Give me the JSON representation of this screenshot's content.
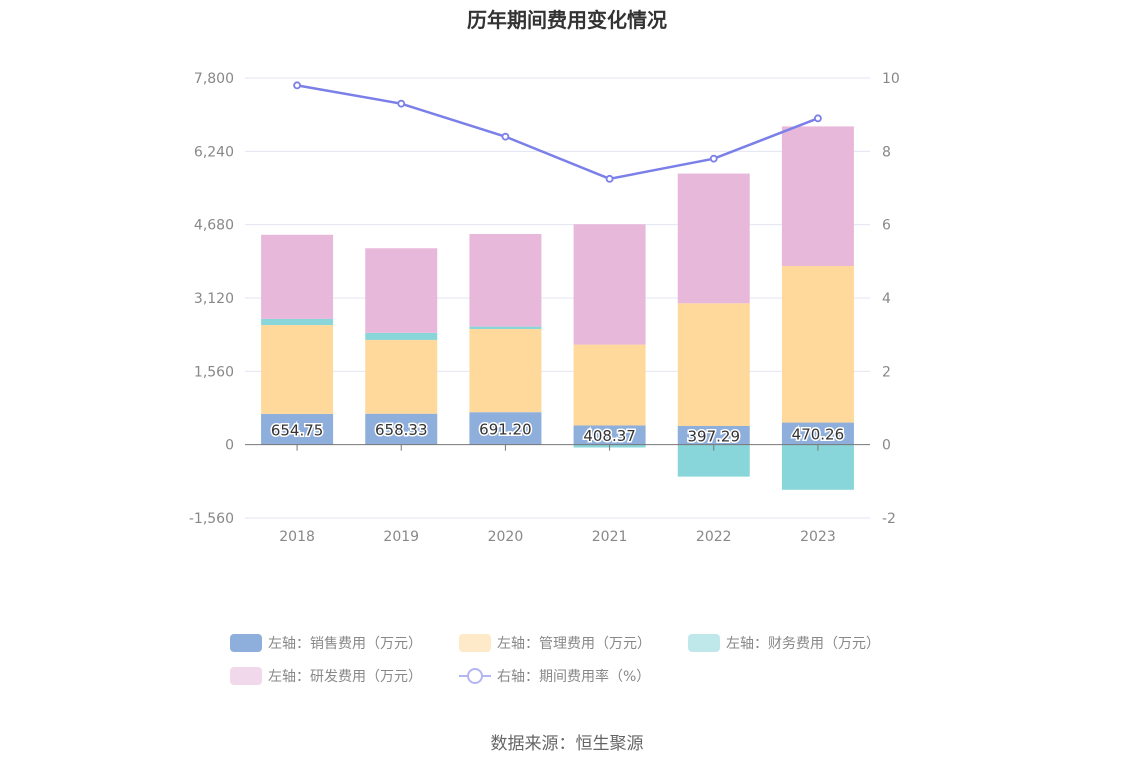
{
  "source_note": "数据来源：恒生聚源",
  "chart_data": {
    "type": "bar",
    "title": "历年期间费用变化情况",
    "categories": [
      "2018",
      "2019",
      "2020",
      "2021",
      "2022",
      "2023"
    ],
    "left_axis": {
      "min": -1560,
      "max": 7800,
      "ticks": [
        -1560,
        0,
        1560,
        3120,
        4680,
        6240,
        7800
      ],
      "tick_labels": [
        "-1,560",
        "0",
        "1,560",
        "3,120",
        "4,680",
        "6,240",
        "7,800"
      ]
    },
    "right_axis": {
      "min": -2,
      "max": 10,
      "ticks": [
        -2,
        0,
        2,
        4,
        6,
        8,
        10
      ],
      "tick_labels": [
        "-2",
        "0",
        "2",
        "4",
        "6",
        "8",
        "10"
      ]
    },
    "grid": true,
    "legend_position": "bottom",
    "series": [
      {
        "name": "左轴：销售费用（万元）",
        "type": "bar",
        "axis": "left",
        "color": "#8eaedc",
        "values": [
          654.75,
          658.33,
          691.2,
          408.37,
          397.29,
          470.26
        ],
        "labels": [
          "654.75",
          "658.33",
          "691.20",
          "408.37",
          "397.29",
          "470.26"
        ]
      },
      {
        "name": "左轴：管理费用（万元）",
        "type": "bar",
        "axis": "left",
        "color": "#fed99b",
        "values": [
          1890,
          1570,
          1770,
          1720,
          2610,
          3330
        ]
      },
      {
        "name": "左轴：财务费用（万元）",
        "type": "bar",
        "axis": "left",
        "color": "#88d6d9",
        "values": [
          130,
          150,
          50,
          -60,
          -680,
          -960
        ]
      },
      {
        "name": "左轴：研发费用（万元）",
        "type": "bar",
        "axis": "left",
        "color": "#e8b8da",
        "values": [
          1790,
          1800,
          1970,
          2560,
          2760,
          2970
        ]
      },
      {
        "name": "右轴：期间费用率（%）",
        "type": "line",
        "axis": "right",
        "color": "#7b7fe8",
        "values": [
          9.8,
          9.3,
          8.4,
          7.25,
          7.8,
          8.9
        ]
      }
    ]
  }
}
